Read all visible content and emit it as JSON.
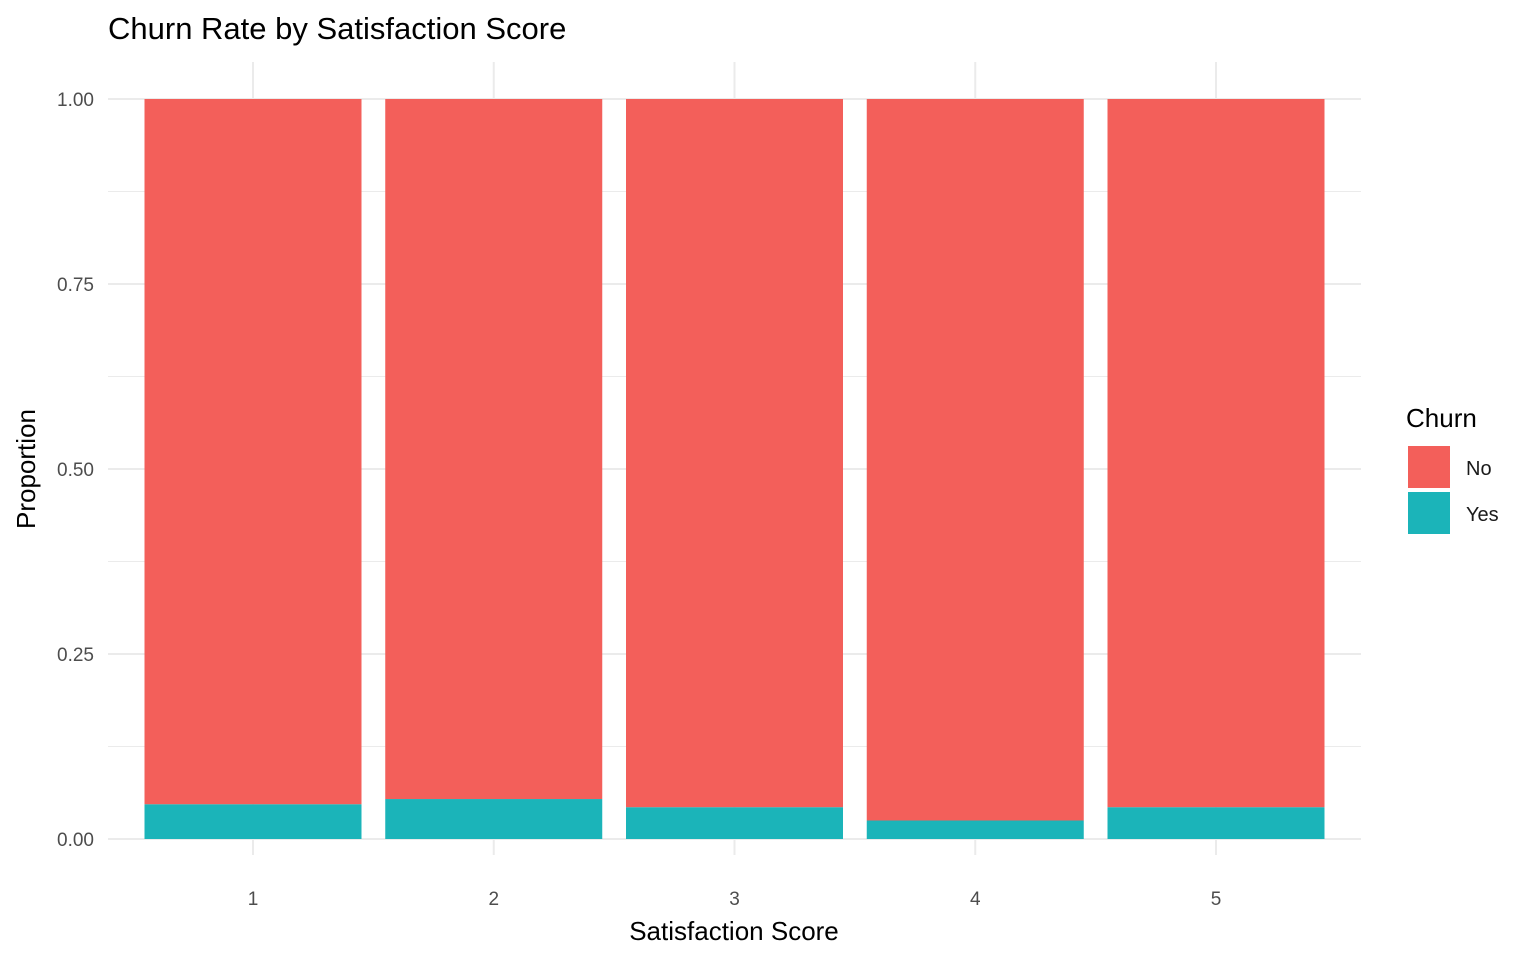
{
  "chart_data": {
    "type": "bar",
    "stacked": true,
    "title": "Churn Rate by Satisfaction Score",
    "xlabel": "Satisfaction Score",
    "ylabel": "Proportion",
    "categories": [
      "1",
      "2",
      "3",
      "4",
      "5"
    ],
    "ylim": [
      0,
      1
    ],
    "yticks": [
      0.0,
      0.25,
      0.5,
      0.75,
      1.0
    ],
    "ytick_labels": [
      "0.00",
      "0.25",
      "0.50",
      "0.75",
      "1.00"
    ],
    "grid": true,
    "legend": {
      "title": "Churn",
      "placement": "right"
    },
    "series": [
      {
        "name": "No",
        "color": "#F8766D",
        "display_color": "#F35F5A",
        "values": [
          0.953,
          0.946,
          0.957,
          0.975,
          0.957
        ]
      },
      {
        "name": "Yes",
        "color": "#00BFC4",
        "display_color": "#1BB4B9",
        "values": [
          0.047,
          0.054,
          0.043,
          0.025,
          0.043
        ]
      }
    ]
  }
}
